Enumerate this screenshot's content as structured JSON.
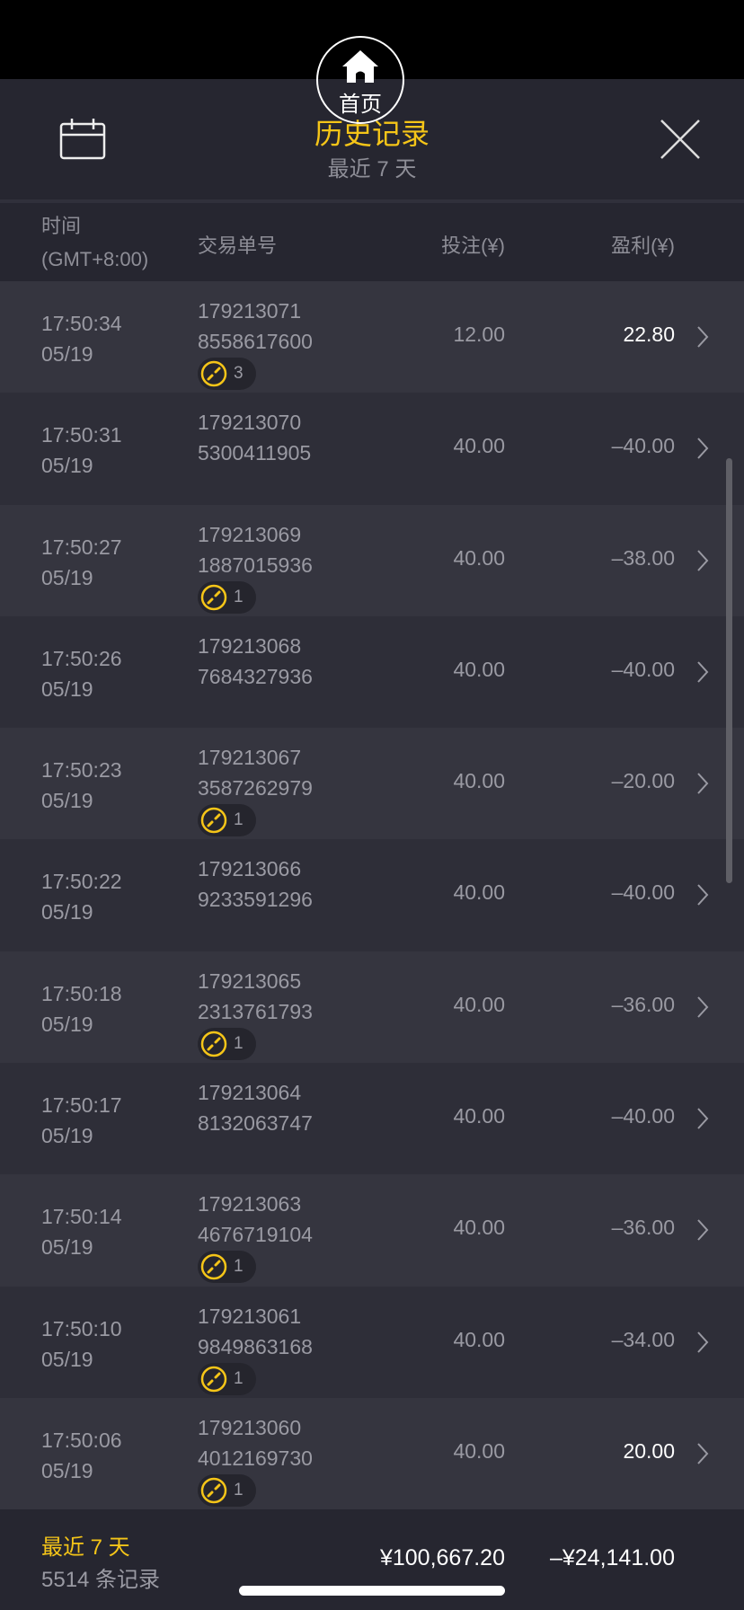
{
  "home": {
    "label": "首页",
    "icon": "home-icon"
  },
  "header": {
    "title": "历史记录",
    "subtitle": "最近 7 天",
    "accent": "#f5c518"
  },
  "columns": {
    "time": "时间",
    "timezone": "(GMT+8:00)",
    "order": "交易单号",
    "bet": "投注(¥)",
    "profit": "盈利(¥)"
  },
  "rows": [
    {
      "time": "17:50:34",
      "date": "05/19",
      "order1": "179213071",
      "order2": "8558617600",
      "badge": "3",
      "bet": "12.00",
      "profit": "22.80",
      "positive": true
    },
    {
      "time": "17:50:31",
      "date": "05/19",
      "order1": "179213070",
      "order2": "5300411905",
      "badge": null,
      "bet": "40.00",
      "profit": "–40.00",
      "positive": false
    },
    {
      "time": "17:50:27",
      "date": "05/19",
      "order1": "179213069",
      "order2": "1887015936",
      "badge": "1",
      "bet": "40.00",
      "profit": "–38.00",
      "positive": false
    },
    {
      "time": "17:50:26",
      "date": "05/19",
      "order1": "179213068",
      "order2": "7684327936",
      "badge": null,
      "bet": "40.00",
      "profit": "–40.00",
      "positive": false
    },
    {
      "time": "17:50:23",
      "date": "05/19",
      "order1": "179213067",
      "order2": "3587262979",
      "badge": "1",
      "bet": "40.00",
      "profit": "–20.00",
      "positive": false
    },
    {
      "time": "17:50:22",
      "date": "05/19",
      "order1": "179213066",
      "order2": "9233591296",
      "badge": null,
      "bet": "40.00",
      "profit": "–40.00",
      "positive": false
    },
    {
      "time": "17:50:18",
      "date": "05/19",
      "order1": "179213065",
      "order2": "2313761793",
      "badge": "1",
      "bet": "40.00",
      "profit": "–36.00",
      "positive": false
    },
    {
      "time": "17:50:17",
      "date": "05/19",
      "order1": "179213064",
      "order2": "8132063747",
      "badge": null,
      "bet": "40.00",
      "profit": "–40.00",
      "positive": false
    },
    {
      "time": "17:50:14",
      "date": "05/19",
      "order1": "179213063",
      "order2": "4676719104",
      "badge": "1",
      "bet": "40.00",
      "profit": "–36.00",
      "positive": false
    },
    {
      "time": "17:50:10",
      "date": "05/19",
      "order1": "179213061",
      "order2": "9849863168",
      "badge": "1",
      "bet": "40.00",
      "profit": "–34.00",
      "positive": false
    },
    {
      "time": "17:50:06",
      "date": "05/19",
      "order1": "179213060",
      "order2": "4012169730",
      "badge": "1",
      "bet": "40.00",
      "profit": "20.00",
      "positive": true
    }
  ],
  "footer": {
    "period": "最近 7 天",
    "count": "5514 条记录",
    "total_bet": "¥100,667.20",
    "total_profit": "–¥24,141.00"
  }
}
